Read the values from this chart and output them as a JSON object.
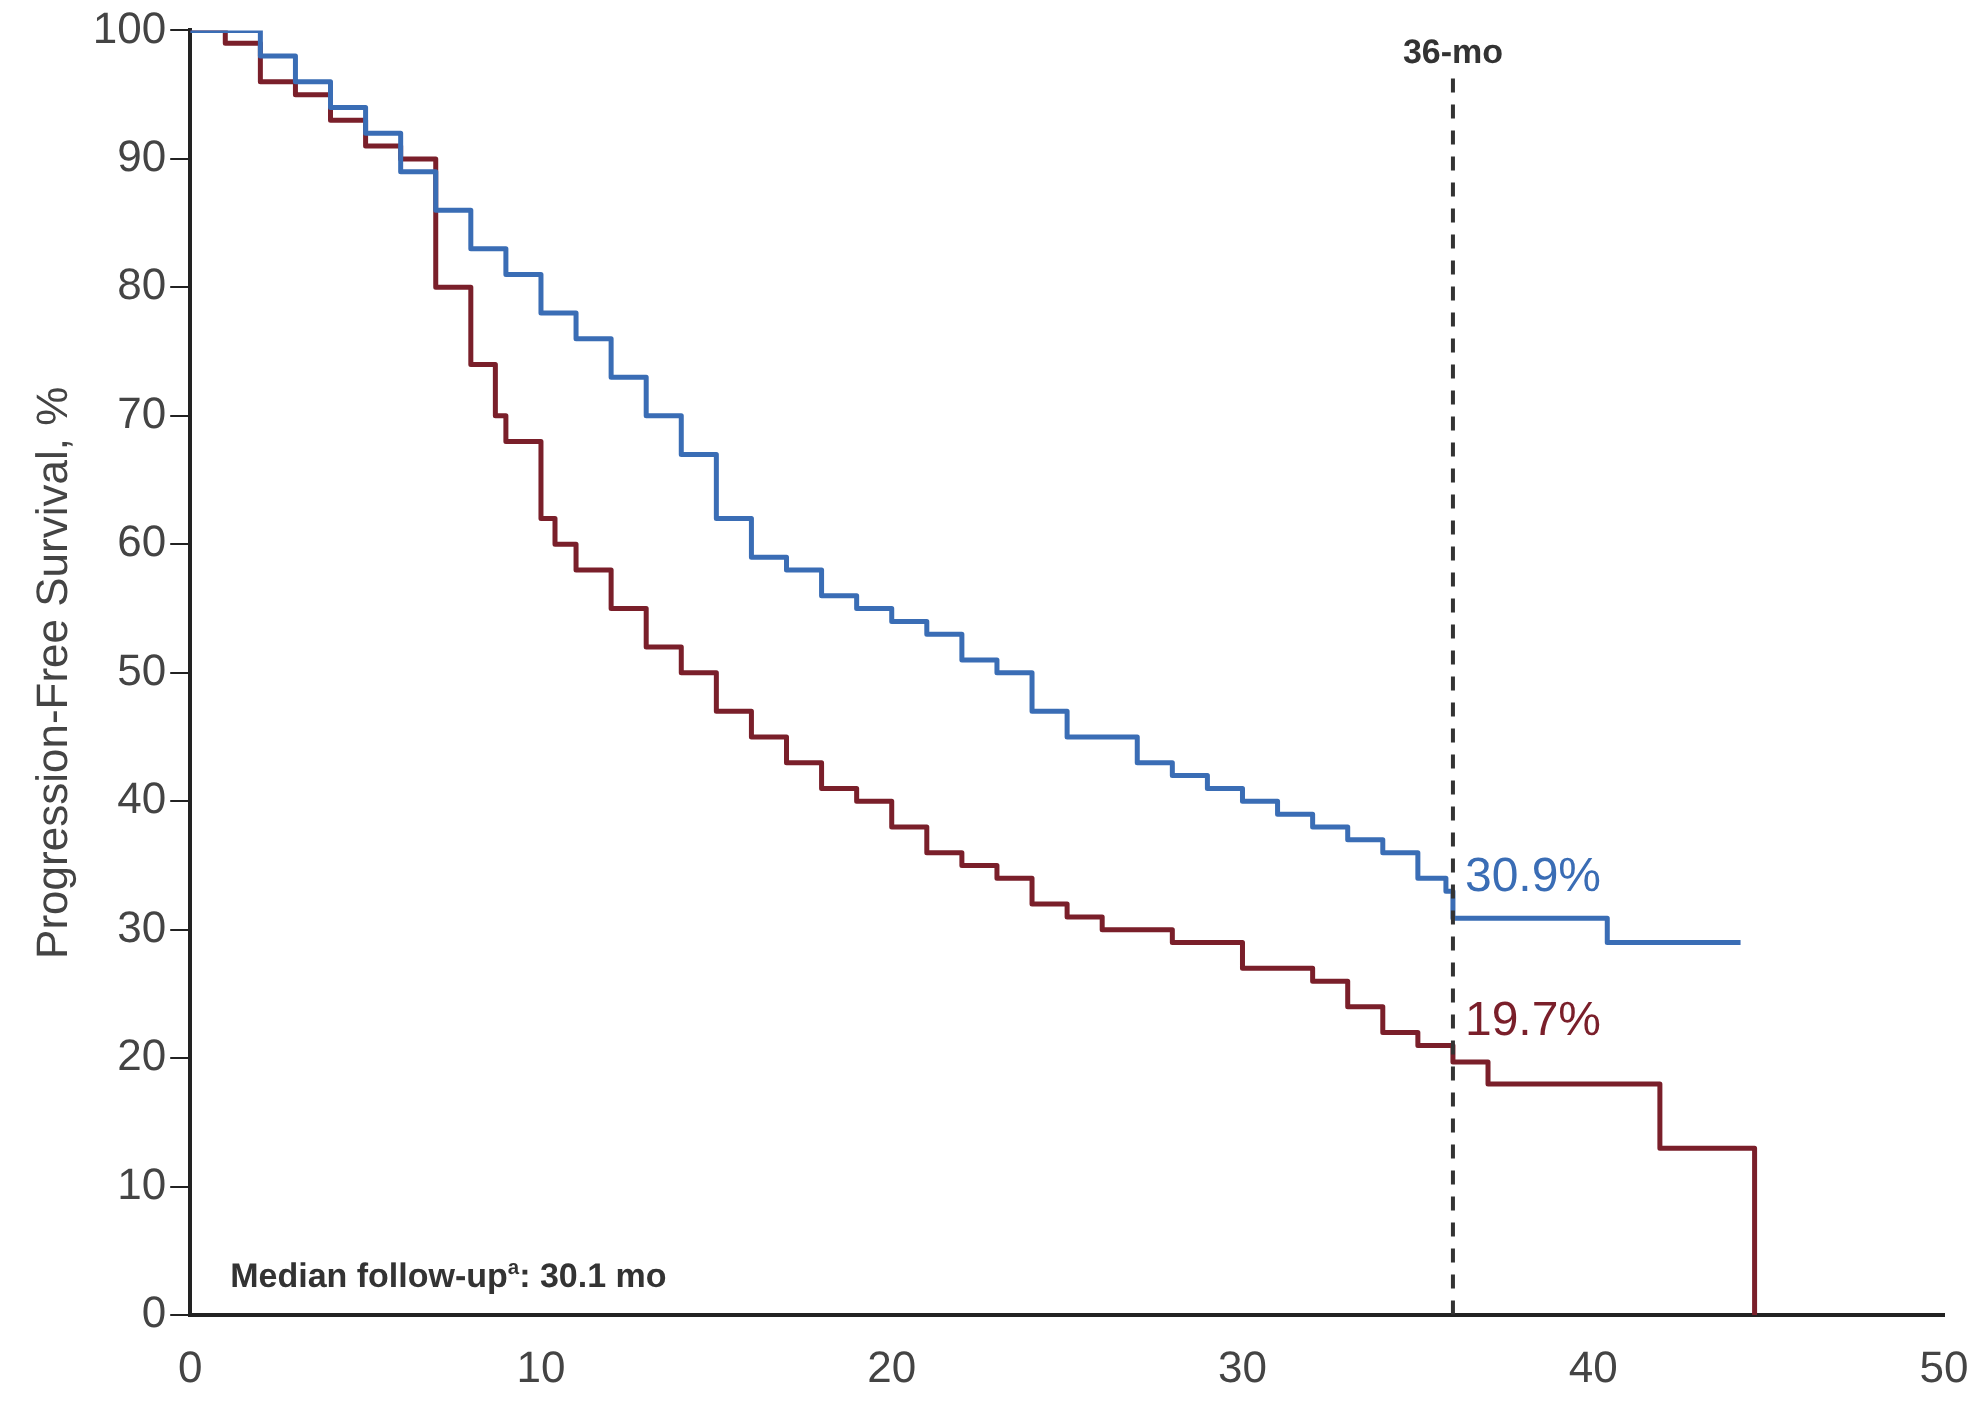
{
  "chart_data": {
    "type": "step",
    "ylabel": "Progression-Free Survival, %",
    "xlim": [
      0,
      50
    ],
    "xticks": [
      0,
      10,
      20,
      30,
      40,
      50
    ],
    "ylim": [
      0,
      100
    ],
    "yticks": [
      0,
      10,
      20,
      30,
      40,
      50,
      60,
      70,
      80,
      90,
      100
    ],
    "grid": false,
    "legend": false,
    "line_style": "solid",
    "marker": "none",
    "series": [
      {
        "color": "#3a6db5",
        "x": [
          0,
          1,
          2,
          3,
          4,
          5,
          6,
          7,
          8,
          9,
          10,
          11,
          12,
          13,
          14,
          15,
          16,
          17,
          18,
          19,
          20,
          21,
          22,
          23,
          24,
          25,
          26,
          27,
          28,
          29,
          30,
          31,
          32,
          33,
          34,
          35,
          35.8,
          36,
          40.3,
          40.4,
          44.2
        ],
        "values": [
          100,
          100,
          98,
          96,
          94,
          92,
          89,
          86,
          83,
          81,
          78,
          76,
          73,
          70,
          67,
          62,
          59,
          58,
          56,
          55,
          54,
          53,
          51,
          50,
          47,
          45,
          45,
          43,
          42,
          41,
          40,
          39,
          38,
          37,
          36,
          34,
          33,
          30.9,
          30.9,
          29,
          29
        ]
      },
      {
        "color": "#7a1f2a",
        "x": [
          0,
          1,
          2,
          3,
          4,
          5,
          6,
          7,
          8,
          8.7,
          9,
          10,
          10.4,
          11,
          12,
          13,
          14,
          15,
          16,
          17,
          18,
          19,
          20,
          21,
          22,
          23,
          24,
          25,
          26,
          28,
          30,
          32,
          33,
          34,
          35,
          36,
          37,
          41.8,
          41.9,
          44.5,
          44.6
        ],
        "values": [
          100,
          99,
          96,
          95,
          93,
          91,
          90,
          80,
          74,
          70,
          68,
          62,
          60,
          58,
          55,
          52,
          50,
          47,
          45,
          43,
          41,
          40,
          38,
          36,
          35,
          34,
          32,
          31,
          30,
          29,
          27,
          26,
          24,
          22,
          21,
          19.7,
          18,
          18,
          13,
          13,
          0
        ]
      }
    ],
    "ref_lines": [
      {
        "axis": "x",
        "value": 36,
        "label": "36-mo",
        "color": "#333333",
        "line_style": "dashed"
      }
    ],
    "annotations": [
      {
        "text": "30.9%",
        "x": 36,
        "y": 30.9
      },
      {
        "text": "19.7%",
        "x": 36,
        "y": 19.7
      },
      "Median follow-up$^{a}$: 30.1 mo"
    ]
  }
}
